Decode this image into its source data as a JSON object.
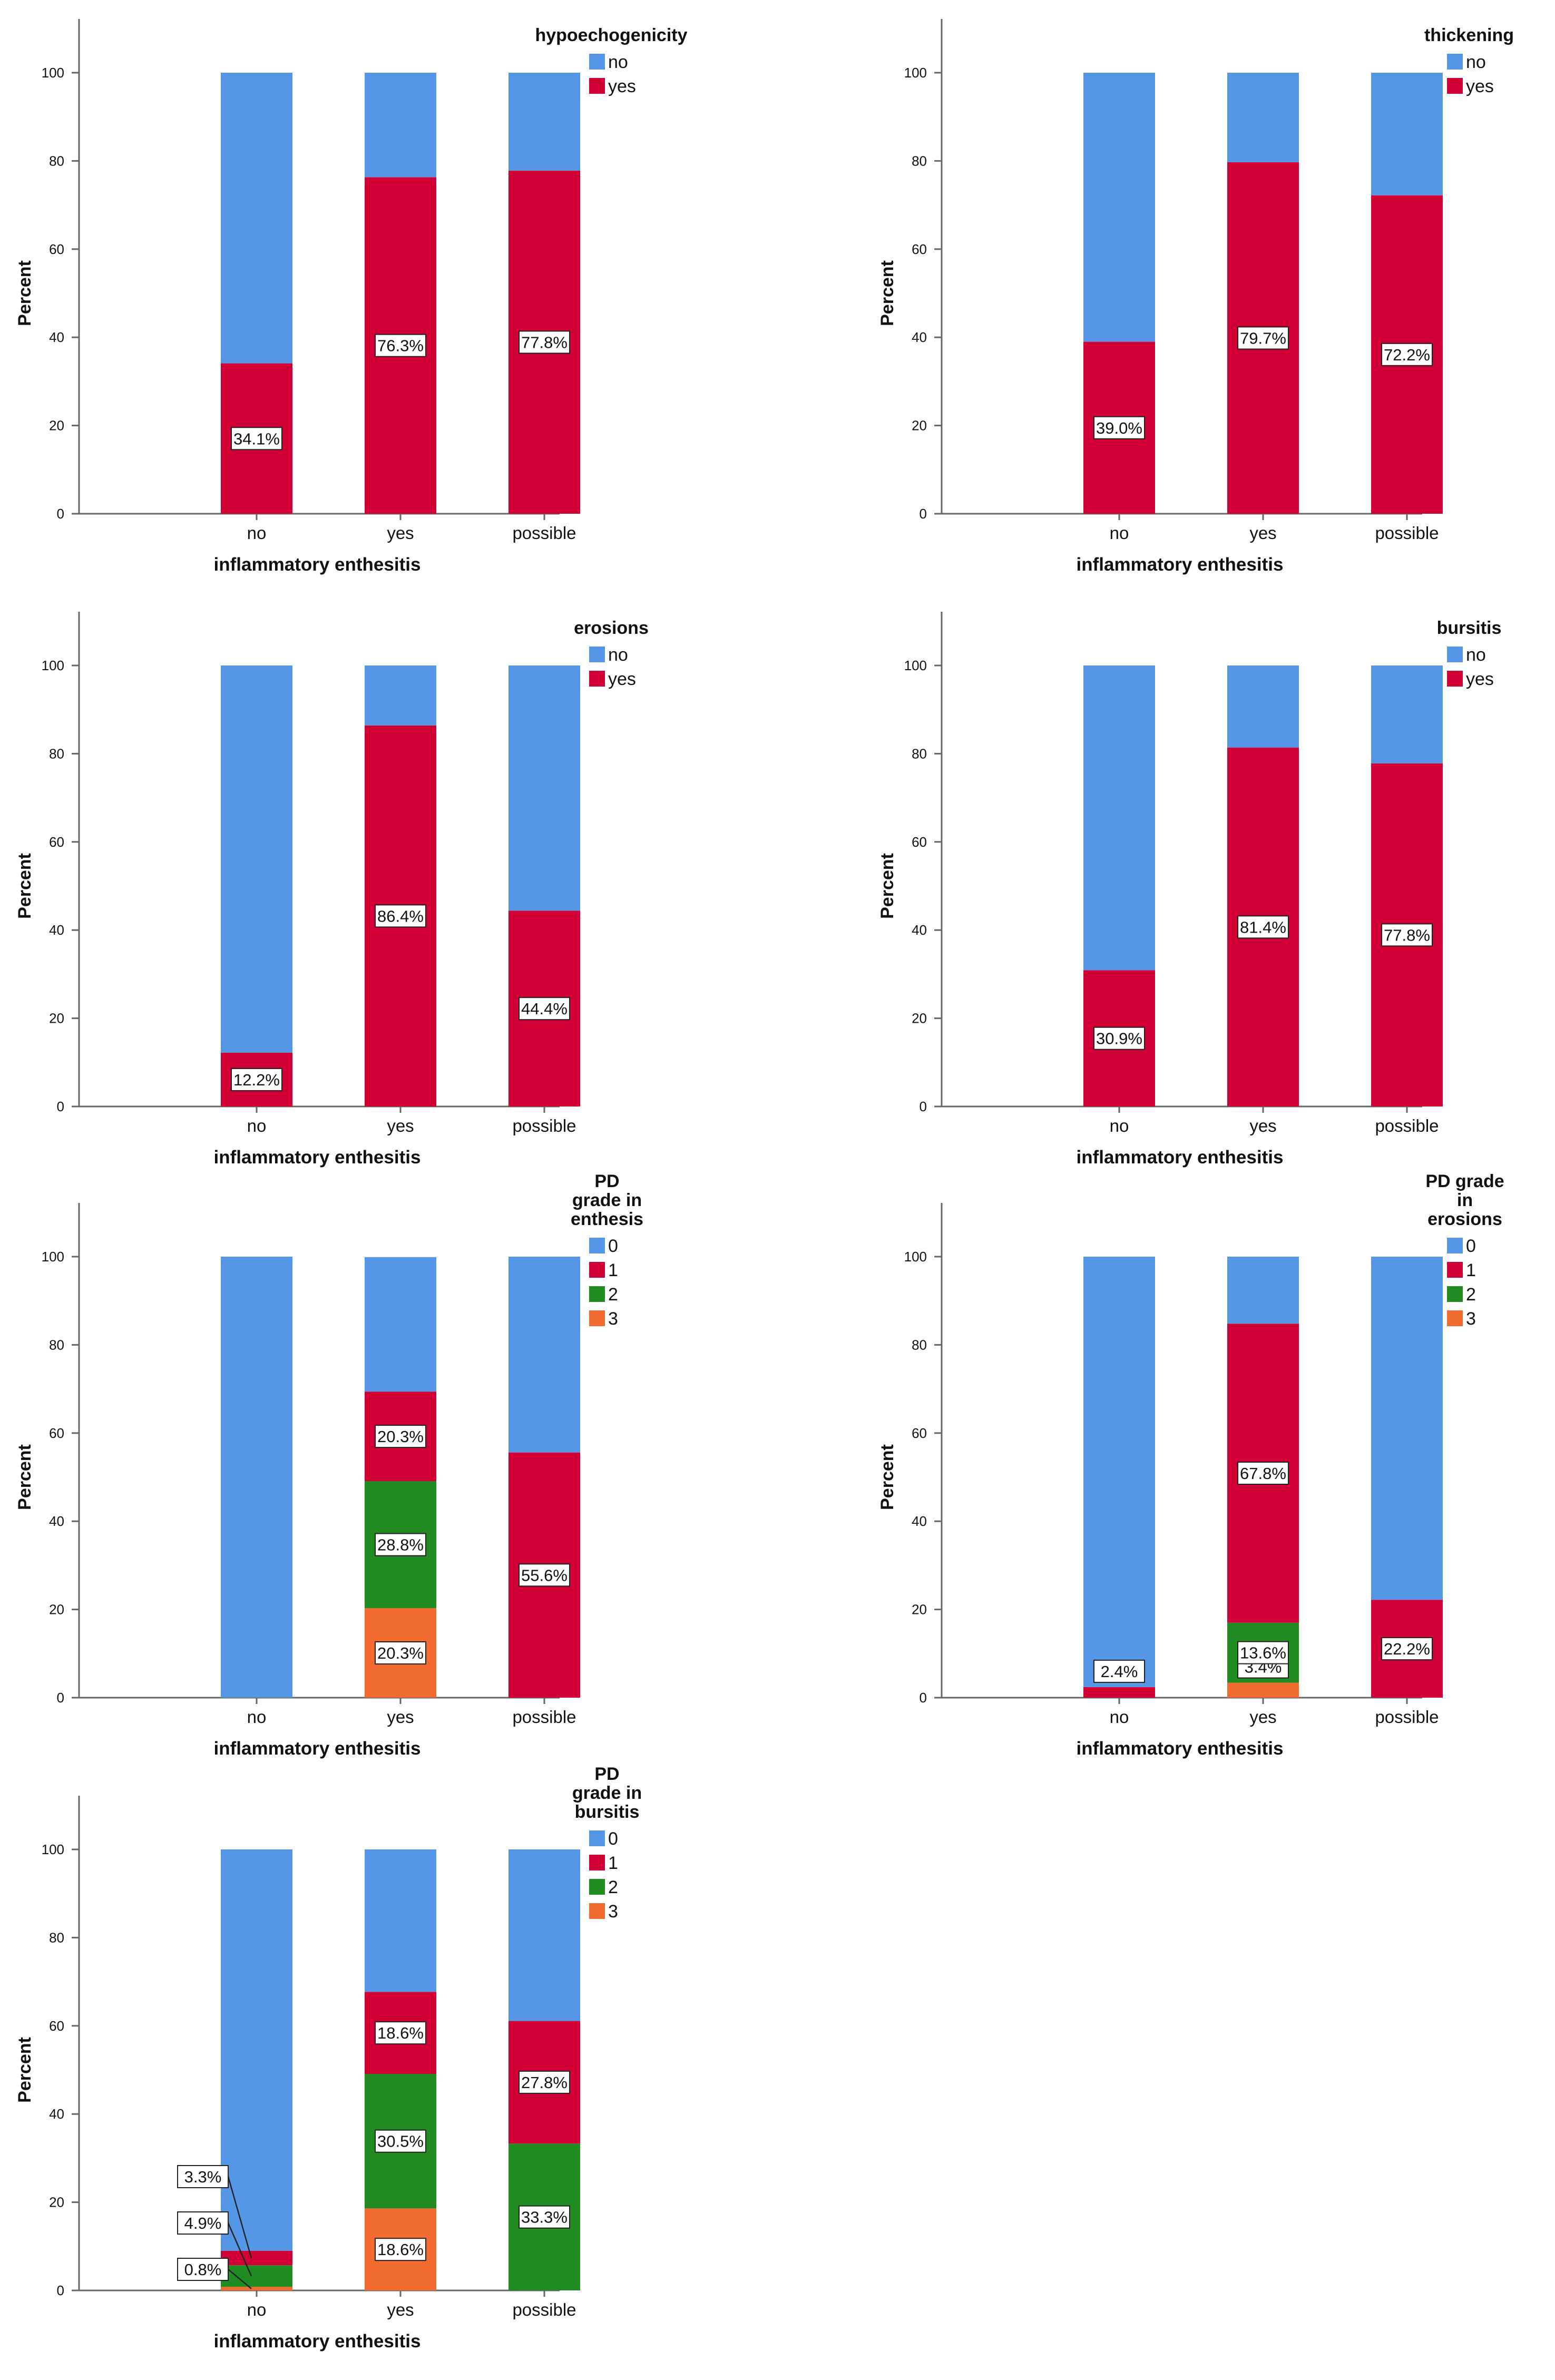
{
  "colors": {
    "c0": "#5596e6",
    "c1": "#d10035",
    "c2": "#228b22",
    "c3": "#f26b30",
    "axis": "#666666",
    "text": "#111111"
  },
  "chart_data": [
    {
      "type": "bar",
      "stacked": true,
      "title": "",
      "xlabel": "inflammatory enthesitis",
      "ylabel": "Percent",
      "ylim": [
        0,
        100
      ],
      "yticks": [
        "0",
        "20",
        "40",
        "60",
        "80",
        "100"
      ],
      "categories": [
        "no",
        "yes",
        "possible"
      ],
      "legend_title": [
        "hypoechogenicity"
      ],
      "series": [
        {
          "name": "no",
          "color_key": "c0",
          "values": [
            65.9,
            23.7,
            22.2
          ]
        },
        {
          "name": "yes",
          "color_key": "c1",
          "values": [
            34.1,
            76.3,
            77.8
          ],
          "labels": [
            "34.1%",
            "76.3%",
            "77.8%"
          ]
        }
      ]
    },
    {
      "type": "bar",
      "stacked": true,
      "title": "",
      "xlabel": "inflammatory enthesitis",
      "ylabel": "Percent",
      "ylim": [
        0,
        100
      ],
      "yticks": [
        "0",
        "20",
        "40",
        "60",
        "80",
        "100"
      ],
      "categories": [
        "no",
        "yes",
        "possible"
      ],
      "legend_title": [
        "thickening"
      ],
      "series": [
        {
          "name": "no",
          "color_key": "c0",
          "values": [
            61.0,
            20.3,
            27.8
          ]
        },
        {
          "name": "yes",
          "color_key": "c1",
          "values": [
            39.0,
            79.7,
            72.2
          ],
          "labels": [
            "39.0%",
            "79.7%",
            "72.2%"
          ]
        }
      ]
    },
    {
      "type": "bar",
      "stacked": true,
      "title": "",
      "xlabel": "inflammatory enthesitis",
      "ylabel": "Percent",
      "ylim": [
        0,
        100
      ],
      "yticks": [
        "0",
        "20",
        "40",
        "60",
        "80",
        "100"
      ],
      "categories": [
        "no",
        "yes",
        "possible"
      ],
      "legend_title": [
        "erosions"
      ],
      "series": [
        {
          "name": "no",
          "color_key": "c0",
          "values": [
            87.8,
            13.6,
            55.6
          ]
        },
        {
          "name": "yes",
          "color_key": "c1",
          "values": [
            12.2,
            86.4,
            44.4
          ],
          "labels": [
            "12.2%",
            "86.4%",
            "44.4%"
          ]
        }
      ]
    },
    {
      "type": "bar",
      "stacked": true,
      "title": "",
      "xlabel": "inflammatory enthesitis",
      "ylabel": "Percent",
      "ylim": [
        0,
        100
      ],
      "yticks": [
        "0",
        "20",
        "40",
        "60",
        "80",
        "100"
      ],
      "categories": [
        "no",
        "yes",
        "possible"
      ],
      "legend_title": [
        "bursitis"
      ],
      "series": [
        {
          "name": "no",
          "color_key": "c0",
          "values": [
            69.1,
            18.6,
            22.2
          ]
        },
        {
          "name": "yes",
          "color_key": "c1",
          "values": [
            30.9,
            81.4,
            77.8
          ],
          "labels": [
            "30.9%",
            "81.4%",
            "77.8%"
          ]
        }
      ]
    },
    {
      "type": "bar",
      "stacked": true,
      "title": "",
      "xlabel": "inflammatory enthesitis",
      "ylabel": "Percent",
      "ylim": [
        0,
        100
      ],
      "yticks": [
        "0",
        "20",
        "40",
        "60",
        "80",
        "100"
      ],
      "categories": [
        "no",
        "yes",
        "possible"
      ],
      "legend_title": [
        "PD",
        "grade in",
        "enthesis"
      ],
      "series": [
        {
          "name": "0",
          "color_key": "c0",
          "values": [
            100,
            30.5,
            44.4
          ]
        },
        {
          "name": "1",
          "color_key": "c1",
          "values": [
            0,
            20.3,
            55.6
          ],
          "labels": [
            "",
            "20.3%",
            "55.6%"
          ]
        },
        {
          "name": "2",
          "color_key": "c2",
          "values": [
            0,
            28.8,
            0
          ],
          "labels": [
            "",
            "28.8%",
            ""
          ]
        },
        {
          "name": "3",
          "color_key": "c3",
          "values": [
            0,
            20.3,
            0
          ],
          "labels": [
            "",
            "20.3%",
            ""
          ]
        }
      ]
    },
    {
      "type": "bar",
      "stacked": true,
      "title": "",
      "xlabel": "inflammatory enthesitis",
      "ylabel": "Percent",
      "ylim": [
        0,
        100
      ],
      "yticks": [
        "0",
        "20",
        "40",
        "60",
        "80",
        "100"
      ],
      "categories": [
        "no",
        "yes",
        "possible"
      ],
      "legend_title": [
        "PD grade",
        "in",
        "erosions"
      ],
      "series": [
        {
          "name": "0",
          "color_key": "c0",
          "values": [
            97.6,
            15.2,
            77.8
          ]
        },
        {
          "name": "1",
          "color_key": "c1",
          "values": [
            2.4,
            67.8,
            22.2
          ],
          "labels": [
            "2.4%",
            "67.8%",
            "22.2%"
          ]
        },
        {
          "name": "2",
          "color_key": "c2",
          "values": [
            0,
            13.6,
            0
          ],
          "labels": [
            "",
            "13.6%",
            ""
          ]
        },
        {
          "name": "3",
          "color_key": "c3",
          "values": [
            0,
            3.4,
            0
          ],
          "labels": [
            "",
            "3.4%",
            ""
          ]
        }
      ]
    },
    {
      "type": "bar",
      "stacked": true,
      "title": "",
      "xlabel": "inflammatory enthesitis",
      "ylabel": "Percent",
      "ylim": [
        0,
        100
      ],
      "yticks": [
        "0",
        "20",
        "40",
        "60",
        "80",
        "100"
      ],
      "categories": [
        "no",
        "yes",
        "possible"
      ],
      "legend_title": [
        "PD",
        "grade in",
        "bursitis"
      ],
      "series": [
        {
          "name": "0",
          "color_key": "c0",
          "values": [
            91.0,
            32.3,
            38.9
          ]
        },
        {
          "name": "1",
          "color_key": "c1",
          "values": [
            3.3,
            18.6,
            27.8
          ],
          "labels": [
            "3.3%",
            "18.6%",
            "27.8%"
          ]
        },
        {
          "name": "2",
          "color_key": "c2",
          "values": [
            4.9,
            30.5,
            33.3
          ],
          "labels": [
            "4.9%",
            "30.5%",
            "33.3%"
          ]
        },
        {
          "name": "3",
          "color_key": "c3",
          "values": [
            0.8,
            18.6,
            0
          ],
          "labels": [
            "0.8%",
            "18.6%",
            ""
          ]
        }
      ]
    }
  ]
}
